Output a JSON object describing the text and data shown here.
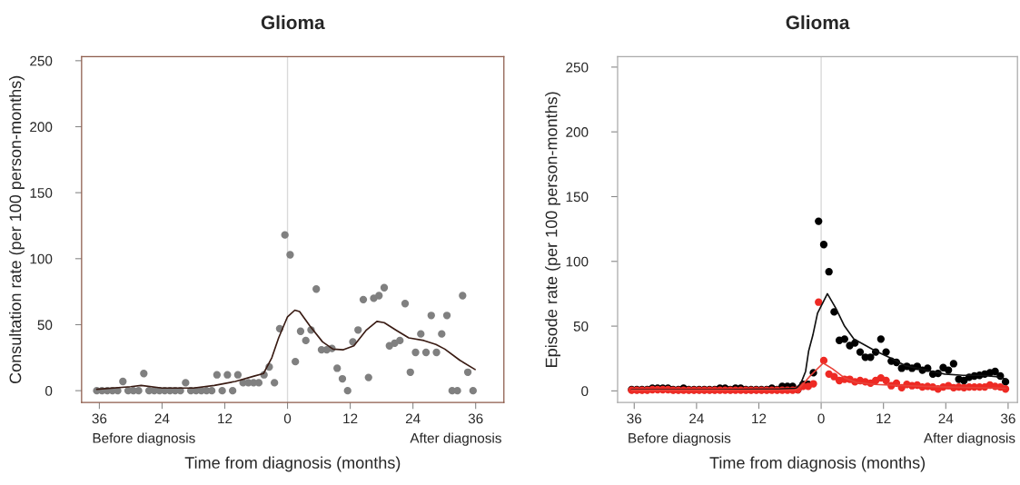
{
  "chart_data": [
    {
      "type": "scatter",
      "title": "Glioma",
      "xlabel": "Time from diagnosis (months)",
      "ylabel": "Consultation rate (per 100 person-months)",
      "xlim": [
        -39.4,
        41.4
      ],
      "ylim": [
        -9,
        253
      ],
      "xticks": [
        {
          "value": -36,
          "label": "36"
        },
        {
          "value": -24,
          "label": "24"
        },
        {
          "value": -12,
          "label": "12"
        },
        0,
        12,
        24,
        36
      ],
      "yticks": [
        0,
        50,
        100,
        150,
        200,
        250
      ],
      "ref_lines": [
        {
          "axis": "x",
          "value": 0,
          "label": null,
          "color": "#d9d9d9"
        }
      ],
      "annotations": [
        "Before diagnosis",
        "After diagnosis"
      ],
      "series": [
        {
          "marker": "circle",
          "color": "#808080",
          "x": [
            -36.5,
            -35.5,
            -34.5,
            -33.5,
            -32.5,
            -31.5,
            -30.5,
            -29.5,
            -28.5,
            -27.5,
            -26.5,
            -25.5,
            -24.5,
            -23.5,
            -22.5,
            -21.5,
            -20.5,
            -19.5,
            -18.5,
            -17.5,
            -16.5,
            -15.5,
            -14.5,
            -13.5,
            -12.5,
            -11.5,
            -10.5,
            -9.5,
            -8.5,
            -7.5,
            -6.5,
            -5.5,
            -4.5,
            -3.5,
            -2.5,
            -1.5,
            -0.5,
            0.5,
            1.5,
            2.5,
            3.5,
            4.5,
            5.5,
            6.5,
            7.5,
            8.5,
            9.5,
            10.5,
            11.5,
            12.5,
            13.5,
            14.5,
            15.5,
            16.5,
            17.5,
            18.5,
            19.5,
            20.5,
            21.5,
            22.5,
            23.5,
            24.5,
            25.5,
            26.5,
            27.5,
            28.5,
            29.5,
            30.5,
            31.5,
            32.5,
            33.5,
            34.5,
            35.5
          ],
          "values": [
            0,
            0,
            0,
            0,
            0,
            7,
            0,
            0,
            0,
            13,
            0,
            0,
            0,
            0,
            0,
            0,
            0,
            6,
            0,
            0,
            0,
            0,
            0,
            12,
            0,
            12,
            0,
            12,
            6,
            6,
            6,
            6,
            12,
            18,
            6,
            47,
            118,
            103,
            22,
            45,
            38,
            46,
            77,
            31,
            31,
            32,
            17,
            9,
            0,
            37,
            46,
            69,
            10,
            70,
            72,
            78,
            34,
            36,
            38,
            66,
            14,
            29,
            43,
            29,
            57,
            29,
            43,
            57,
            0,
            0,
            72,
            14,
            0
          ]
        },
        {
          "type": "line",
          "marker": "none",
          "color": "#3a1c14",
          "x": [
            -36.5,
            -30,
            -28,
            -24,
            -18,
            -14,
            -10,
            -6.4,
            -4.6,
            -3.8,
            -3,
            -1.7,
            0,
            1.4,
            2.3,
            4.3,
            6.7,
            8.7,
            10.7,
            12.7,
            15.1,
            17.1,
            18.5,
            20.9,
            23.2,
            26.1,
            28.4,
            30.1,
            33,
            35.9
          ],
          "values": [
            1,
            3,
            4,
            2,
            2,
            4,
            7,
            11,
            13,
            19,
            25,
            40,
            56,
            61,
            60,
            49,
            37,
            31.5,
            31,
            34,
            46,
            52.5,
            51.5,
            45.5,
            40,
            38,
            35,
            31.5,
            23,
            16
          ]
        }
      ]
    },
    {
      "type": "scatter",
      "title": "Glioma",
      "xlabel": "Time from diagnosis (months)",
      "ylabel": "Episode rate (per 100 person-months)",
      "xlim": [
        -39.2,
        37.8
      ],
      "ylim": [
        -9,
        258
      ],
      "xticks": [
        {
          "value": -36,
          "label": "36"
        },
        {
          "value": -24,
          "label": "24"
        },
        {
          "value": -12,
          "label": "12"
        },
        0,
        12,
        24,
        36
      ],
      "yticks": [
        0,
        50,
        100,
        150,
        200,
        250
      ],
      "ref_lines": [
        {
          "axis": "x",
          "value": 0,
          "label": null,
          "color": "#d9d9d9"
        }
      ],
      "annotations": [
        "Before diagnosis",
        "After diagnosis"
      ],
      "series": [
        {
          "marker": "circle",
          "color": "#000000",
          "x": [
            -36.5,
            -35.5,
            -34.5,
            -33.5,
            -32.5,
            -31.5,
            -30.5,
            -29.5,
            -28.5,
            -27.5,
            -26.5,
            -25.5,
            -24.5,
            -23.5,
            -22.5,
            -21.5,
            -20.5,
            -19.5,
            -18.5,
            -17.5,
            -16.5,
            -15.5,
            -14.5,
            -13.5,
            -12.5,
            -11.5,
            -10.5,
            -9.5,
            -8.5,
            -7.5,
            -6.5,
            -5.5,
            -4.5,
            -3.5,
            -2.5,
            -1.5,
            -0.5,
            0.5,
            1.5,
            2.5,
            3.5,
            4.5,
            5.5,
            6.5,
            7.5,
            8.5,
            9.5,
            10.5,
            11.5,
            12.5,
            13.5,
            14.5,
            15.5,
            16.5,
            17.5,
            18.5,
            19.5,
            20.5,
            21.5,
            22.5,
            23.5,
            24.5,
            25.5,
            26.5,
            27.5,
            28.5,
            29.5,
            30.5,
            31.5,
            32.5,
            33.5,
            34.5,
            35.5
          ],
          "values": [
            1,
            1,
            1,
            1,
            2,
            2,
            2,
            2,
            1,
            1,
            2,
            1,
            1,
            1,
            1,
            1,
            1,
            2,
            2,
            1,
            2,
            2,
            1,
            1,
            1,
            1,
            1,
            2,
            1,
            3.5,
            3.5,
            3.5,
            1,
            5,
            5,
            14,
            131,
            113,
            92,
            61,
            39,
            40,
            35,
            37,
            30,
            26,
            26,
            30,
            40,
            30,
            23,
            22,
            17.5,
            19,
            17.5,
            19,
            16,
            17.5,
            13,
            13.5,
            18,
            16,
            21,
            9,
            8,
            10.5,
            11.5,
            12,
            13,
            14,
            15,
            11.5,
            7
          ]
        },
        {
          "marker": "circle",
          "color": "#ee2a24",
          "x": [
            -36.5,
            -35.5,
            -34.5,
            -33.5,
            -32.5,
            -31.5,
            -30.5,
            -29.5,
            -28.5,
            -27.5,
            -26.5,
            -25.5,
            -24.5,
            -23.5,
            -22.5,
            -21.5,
            -20.5,
            -19.5,
            -18.5,
            -17.5,
            -16.5,
            -15.5,
            -14.5,
            -13.5,
            -12.5,
            -11.5,
            -10.5,
            -9.5,
            -8.5,
            -7.5,
            -6.5,
            -5.5,
            -4.5,
            -3.5,
            -2.5,
            -1.5,
            -0.5,
            0.5,
            1.5,
            2.5,
            3.5,
            4.5,
            5.5,
            6.5,
            7.5,
            8.5,
            9.5,
            10.5,
            11.5,
            12.5,
            13.5,
            14.5,
            15.5,
            16.5,
            17.5,
            18.5,
            19.5,
            20.5,
            21.5,
            22.5,
            23.5,
            24.5,
            25.5,
            26.5,
            27.5,
            28.5,
            29.5,
            30.5,
            31.5,
            32.5,
            33.5,
            34.5,
            35.5
          ],
          "values": [
            0.5,
            0.5,
            0.5,
            0.5,
            1,
            1,
            1,
            1,
            0.5,
            0.5,
            0.5,
            0.5,
            0.5,
            0.5,
            0.5,
            0.5,
            0.5,
            0.5,
            0.5,
            0.5,
            0.5,
            0.5,
            0.5,
            0.5,
            0.5,
            0.5,
            0.5,
            0.5,
            0.5,
            0.5,
            0.5,
            0.5,
            1,
            3.5,
            3.5,
            5.5,
            68.5,
            23.5,
            13,
            11,
            8,
            9,
            9,
            7,
            8,
            7,
            6,
            8,
            10,
            8,
            4,
            6,
            2.5,
            5,
            4,
            4.5,
            3,
            3.5,
            3,
            1.5,
            3,
            4,
            2.5,
            3,
            2.5,
            3,
            3,
            3,
            3,
            4.5,
            3.5,
            3,
            1.5
          ]
        },
        {
          "type": "line",
          "marker": "none",
          "color": "#111111",
          "x": [
            -36.5,
            -20,
            -8,
            -4.8,
            -3.9,
            -3,
            -2.4,
            -1.6,
            -0.7,
            1.2,
            2.8,
            4.5,
            6.3,
            10.4,
            13.3,
            16.2,
            20.3,
            23.8,
            27.3,
            30.8,
            33.7,
            35.7
          ],
          "values": [
            1,
            1,
            1.5,
            2,
            6,
            15,
            31,
            43,
            60,
            75,
            64,
            50,
            40,
            31,
            25.5,
            19.5,
            16,
            13,
            12,
            12,
            11,
            9
          ]
        },
        {
          "type": "line",
          "marker": "none",
          "color": "#e8433a",
          "x": [
            -36.5,
            -20,
            -5,
            -4.2,
            -1.9,
            0.4,
            2.2,
            4.5,
            6.8,
            10.3,
            16,
            24,
            35.5
          ],
          "values": [
            0.5,
            0.5,
            0.8,
            2,
            12.5,
            21.5,
            17,
            10,
            6.5,
            5,
            4,
            3,
            2
          ]
        }
      ]
    }
  ]
}
